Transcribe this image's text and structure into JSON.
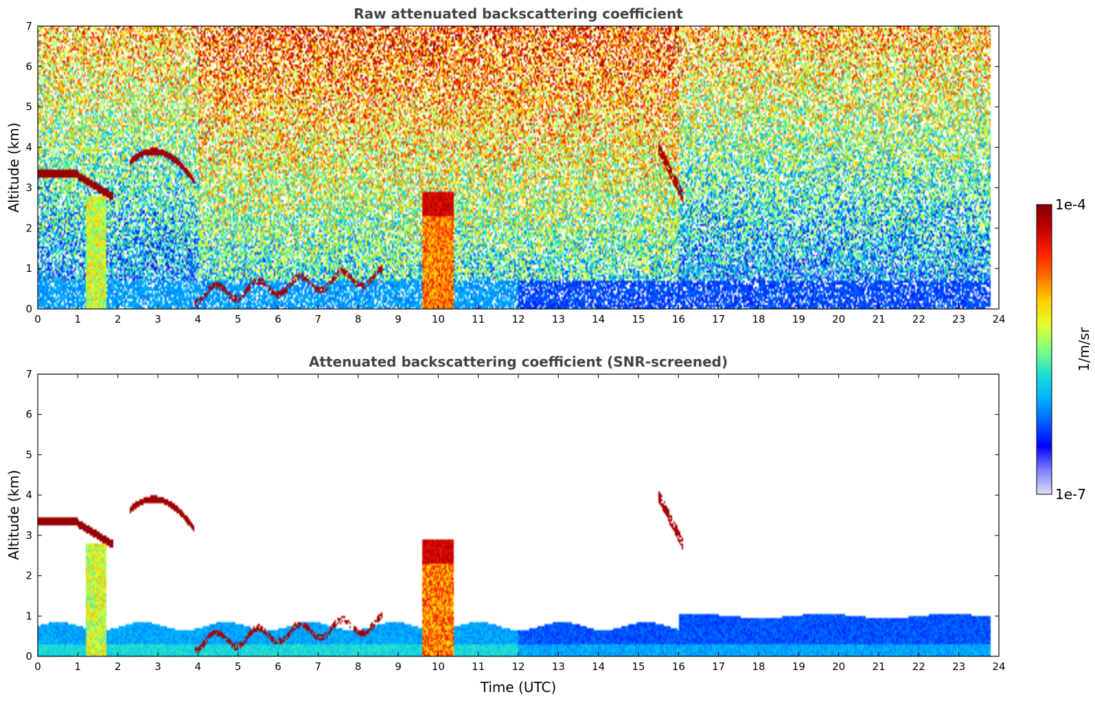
{
  "chart_data": [
    {
      "type": "heatmap",
      "title": "Raw attenuated backscattering coefficient",
      "xlabel": "",
      "ylabel": "Altitude (km)",
      "xlim": [
        0,
        24
      ],
      "ylim": [
        0,
        7
      ],
      "xticks": [
        "0",
        "1",
        "2",
        "3",
        "4",
        "5",
        "6",
        "7",
        "8",
        "9",
        "10",
        "11",
        "12",
        "13",
        "14",
        "15",
        "16",
        "17",
        "18",
        "19",
        "20",
        "21",
        "22",
        "23",
        "24"
      ],
      "yticks": [
        "0",
        "1",
        "2",
        "3",
        "4",
        "5",
        "6",
        "7"
      ],
      "data_end_hour": 23.8,
      "features": [
        {
          "kind": "cloud",
          "t_start": 0.0,
          "t_end": 1.9,
          "alt_km": 3.3
        },
        {
          "kind": "cloud_arc",
          "t_start": 2.3,
          "t_end": 3.9,
          "alt_km": 3.9
        },
        {
          "kind": "cloud_thick",
          "t_start": 9.6,
          "t_end": 10.4,
          "alt_bottom_km": 2.3,
          "alt_top_km": 2.9
        },
        {
          "kind": "precip_column",
          "t_start": 9.6,
          "t_end": 10.35
        },
        {
          "kind": "precip_column",
          "t_start": 1.2,
          "t_end": 1.7
        }
      ]
    },
    {
      "type": "heatmap",
      "title": "Attenuated backscattering coefficient (SNR-screened)",
      "xlabel": "Time (UTC)",
      "ylabel": "Altitude (km)",
      "xlim": [
        0,
        24
      ],
      "ylim": [
        0,
        7
      ],
      "xticks": [
        "0",
        "1",
        "2",
        "3",
        "4",
        "5",
        "6",
        "7",
        "8",
        "9",
        "10",
        "11",
        "12",
        "13",
        "14",
        "15",
        "16",
        "17",
        "18",
        "19",
        "20",
        "21",
        "22",
        "23",
        "24"
      ],
      "yticks": [
        "0",
        "1",
        "2",
        "3",
        "4",
        "5",
        "6",
        "7"
      ],
      "data_end_hour": 23.8
    }
  ],
  "colorbar": {
    "max_label": "1e-4",
    "min_label": "1e-7",
    "unit_label": "1/m/sr",
    "colors": [
      "#dde0f8",
      "#7f7fff",
      "#0000ff",
      "#0060ff",
      "#00b4ff",
      "#20e0d0",
      "#80ff80",
      "#e0ff30",
      "#ffd000",
      "#ff7000",
      "#ff2000",
      "#c00000",
      "#800000"
    ]
  }
}
